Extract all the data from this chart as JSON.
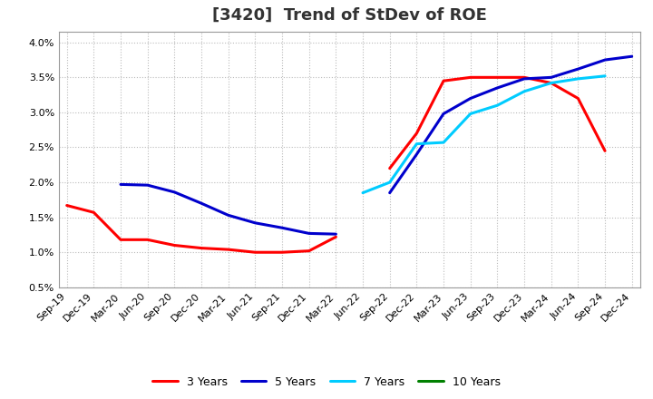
{
  "title": "[3420]  Trend of StDev of ROE",
  "x_labels": [
    "Sep-19",
    "Dec-19",
    "Mar-20",
    "Jun-20",
    "Sep-20",
    "Dec-20",
    "Mar-21",
    "Jun-21",
    "Sep-21",
    "Dec-21",
    "Mar-22",
    "Jun-22",
    "Sep-22",
    "Dec-22",
    "Mar-23",
    "Jun-23",
    "Sep-23",
    "Dec-23",
    "Mar-24",
    "Jun-24",
    "Sep-24",
    "Dec-24"
  ],
  "color_3y": "#ff0000",
  "color_5y": "#0000cc",
  "color_7y": "#00ccff",
  "color_10y": "#008000",
  "background_color": "#ffffff",
  "grid_color": "#bbbbbb",
  "title_fontsize": 13,
  "tick_fontsize": 8,
  "legend_fontsize": 9
}
